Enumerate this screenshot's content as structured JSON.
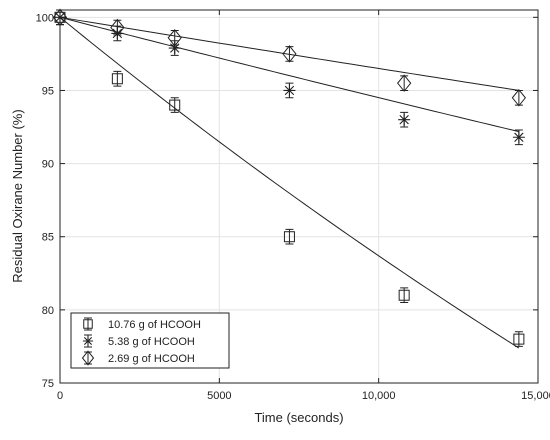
{
  "chart_data": {
    "type": "scatter",
    "xlabel": "Time (seconds)",
    "ylabel": "Residual Oxirane Number (%)",
    "xlim": [
      0,
      15000
    ],
    "ylim": [
      75,
      100.5
    ],
    "xticks": [
      0,
      5000,
      10000,
      15000
    ],
    "xtick_labels": [
      "0",
      "5000",
      "10,000",
      "15,000"
    ],
    "yticks": [
      75,
      80,
      85,
      90,
      95,
      100
    ],
    "ytick_labels": [
      "75",
      "80",
      "85",
      "90",
      "95",
      "100"
    ],
    "grid": true,
    "legend_position": "bottom-left",
    "series": [
      {
        "name": "10.76 g of HCOOH",
        "marker": "square",
        "color": "#222222",
        "x": [
          0,
          1800,
          3600,
          7200,
          10800,
          14400
        ],
        "y": [
          100,
          95.8,
          94.0,
          85.0,
          81.0,
          78.0
        ],
        "error": 0.5,
        "fit": {
          "k": 1.78e-05
        }
      },
      {
        "name": "5.38 g of HCOOH",
        "marker": "asterisk",
        "color": "#222222",
        "x": [
          0,
          1800,
          3600,
          7200,
          10800,
          14400
        ],
        "y": [
          100,
          98.9,
          97.9,
          95.0,
          93.0,
          91.8
        ],
        "error": 0.5,
        "fit": {
          "k": 5.65e-06
        }
      },
      {
        "name": "2.69 g of HCOOH",
        "marker": "diamond",
        "color": "#222222",
        "x": [
          0,
          1800,
          3600,
          7200,
          10800,
          14400
        ],
        "y": [
          100,
          99.3,
          98.6,
          97.5,
          95.5,
          94.5
        ],
        "error": 0.5,
        "fit": {
          "k": 3.56e-06
        }
      }
    ]
  }
}
